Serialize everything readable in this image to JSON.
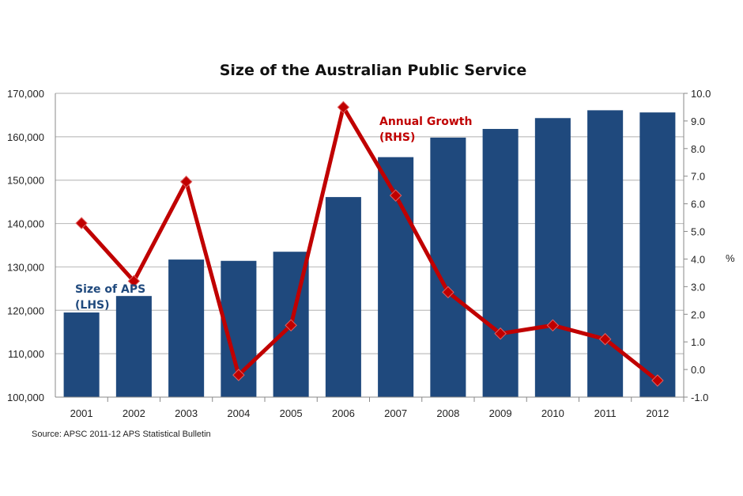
{
  "chart_data": {
    "type": "bar+line",
    "title": "Size of the Australian Public Service",
    "source": "Source: APSC 2011-12 APS Statistical Bulletin",
    "categories": [
      "2001",
      "2002",
      "2003",
      "2004",
      "2005",
      "2006",
      "2007",
      "2008",
      "2009",
      "2010",
      "2011",
      "2012"
    ],
    "series": [
      {
        "name": "Size of APS (LHS)",
        "label_lines": [
          "Size of APS",
          "(LHS)"
        ],
        "type": "bar",
        "axis": "left",
        "color": "#1f497d",
        "values": [
          119500,
          123300,
          131700,
          131400,
          133500,
          146100,
          155300,
          159800,
          161800,
          164300,
          166100,
          165600
        ]
      },
      {
        "name": "Annual Growth (RHS)",
        "label_lines": [
          "Annual Growth",
          "(RHS)"
        ],
        "type": "line",
        "axis": "right",
        "color": "#c00000",
        "values": [
          5.3,
          3.2,
          6.8,
          -0.2,
          1.6,
          9.5,
          6.3,
          2.8,
          1.3,
          1.6,
          1.1,
          -0.4
        ]
      }
    ],
    "left_axis": {
      "range": [
        100000,
        170000
      ],
      "ticks": [
        "100,000",
        "110,000",
        "120,000",
        "130,000",
        "140,000",
        "150,000",
        "160,000",
        "170,000"
      ]
    },
    "right_axis": {
      "range": [
        -1,
        10
      ],
      "label": "%",
      "ticks": [
        "-1.0",
        "0.0",
        "1.0",
        "2.0",
        "3.0",
        "4.0",
        "5.0",
        "6.0",
        "7.0",
        "8.0",
        "9.0",
        "10.0"
      ]
    },
    "grid": true
  }
}
